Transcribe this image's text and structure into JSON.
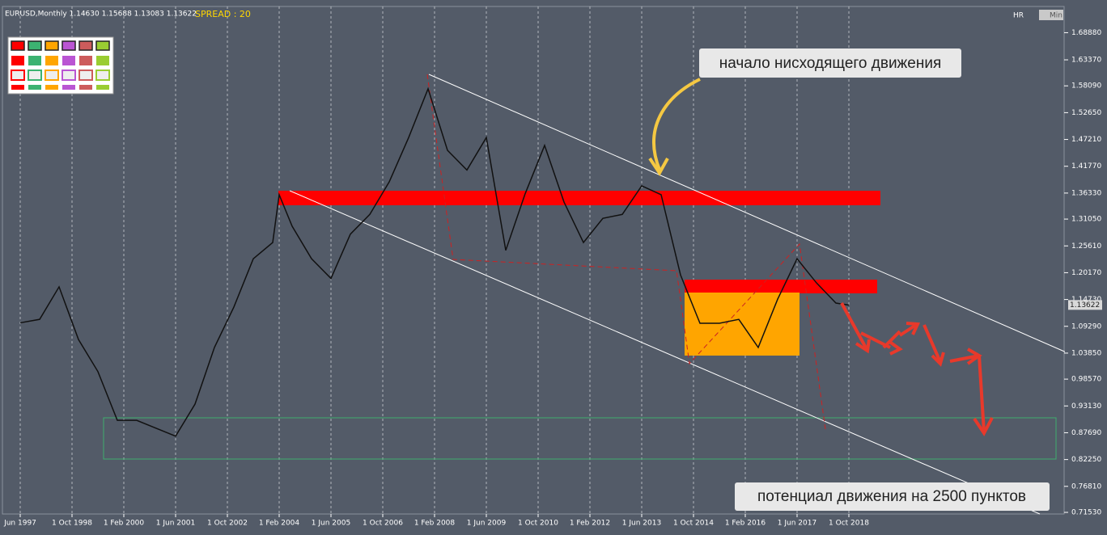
{
  "chart_data": {
    "type": "line",
    "symbol_info": "EURUSD,Monthly  1.14630 1.15688 1.13083 1.13622",
    "spread": "SPREAD : 20",
    "buttons": [
      "HR",
      "Min"
    ],
    "annotations": [
      "начало нисходящего движения",
      "потенциал движения на 2500 пунктов"
    ],
    "last_price": 1.13622,
    "x": [
      "1 Jun 1997",
      "1 Dec 1997",
      "1 Jun 1998",
      "1 Dec 1998",
      "1 Jun 1999",
      "1 Dec 1999",
      "1 Jun 2000",
      "1 Dec 2000",
      "1 Jun 2001",
      "1 Dec 2001",
      "1 Jun 2002",
      "1 Dec 2002",
      "1 Jun 2003",
      "1 Dec 2003",
      "1 Feb 2004",
      "1 Jun 2004",
      "1 Dec 2004",
      "1 Jun 2005",
      "1 Dec 2005",
      "1 Jun 2006",
      "1 Dec 2006",
      "1 Jun 2007",
      "1 Dec 2007",
      "1 Jun 2008",
      "1 Dec 2008",
      "1 Jun 2009",
      "1 Dec 2009",
      "1 Jun 2010",
      "1 Dec 2010",
      "1 Jun 2011",
      "1 Dec 2011",
      "1 Jun 2012",
      "1 Dec 2012",
      "1 Jun 2013",
      "1 Dec 2013",
      "1 Jun 2014",
      "1 Dec 2014",
      "1 Jun 2015",
      "1 Dec 2015",
      "1 Jun 2016",
      "1 Dec 2016",
      "1 Jun 2017",
      "1 Dec 2017",
      "1 Jun 2018",
      "1 Oct 2018"
    ],
    "series": [
      {
        "name": "EURUSD",
        "color": "#111111",
        "values": [
          1.1,
          1.107,
          1.173,
          1.066,
          1.001,
          0.902,
          0.902,
          0.886,
          0.87,
          0.935,
          1.05,
          1.132,
          1.23,
          1.263,
          1.36,
          1.296,
          1.23,
          1.19,
          1.28,
          1.32,
          1.386,
          1.476,
          1.575,
          1.45,
          1.41,
          1.476,
          1.247,
          1.362,
          1.46,
          1.345,
          1.263,
          1.312,
          1.32,
          1.378,
          1.36,
          1.197,
          1.099,
          1.099,
          1.107,
          1.05,
          1.148,
          1.23,
          1.181,
          1.14,
          1.136
        ]
      }
    ],
    "xticks": [
      "Jun 1997",
      "1 Oct 1998",
      "1 Feb 2000",
      "1 Jun 2001",
      "1 Oct 2002",
      "1 Feb 2004",
      "1 Jun 2005",
      "1 Oct 2006",
      "1 Feb 2008",
      "1 Jun 2009",
      "1 Oct 2010",
      "1 Feb 2012",
      "1 Jun 2013",
      "1 Oct 2014",
      "1 Feb 2016",
      "1 Jun 2017",
      "1 Oct 2018"
    ],
    "ylim": [
      0.712,
      1.742
    ],
    "yticks": [
      {
        "value": 1.6888,
        "label": "1.68880"
      },
      {
        "value": 1.6337,
        "label": "1.63370"
      },
      {
        "value": 1.5809,
        "label": "1.58090"
      },
      {
        "value": 1.5265,
        "label": "1.52650"
      },
      {
        "value": 1.4721,
        "label": "1.47210"
      },
      {
        "value": 1.4177,
        "label": "1.41770"
      },
      {
        "value": 1.3633,
        "label": "1.36330"
      },
      {
        "value": 1.3105,
        "label": "1.31050"
      },
      {
        "value": 1.2561,
        "label": "1.25610"
      },
      {
        "value": 1.2017,
        "label": "1.20170"
      },
      {
        "value": 1.1473,
        "label": "1.14730"
      },
      {
        "value": 1.0929,
        "label": "1.09290"
      },
      {
        "value": 1.0385,
        "label": "1.03850"
      },
      {
        "value": 0.9857,
        "label": "0.98570"
      },
      {
        "value": 0.9313,
        "label": "0.93130"
      },
      {
        "value": 0.8769,
        "label": "0.87690"
      },
      {
        "value": 0.8225,
        "label": "0.82250"
      },
      {
        "value": 0.7681,
        "label": "0.76810"
      },
      {
        "value": 0.7153,
        "label": "0.71530"
      }
    ],
    "grid": true
  }
}
